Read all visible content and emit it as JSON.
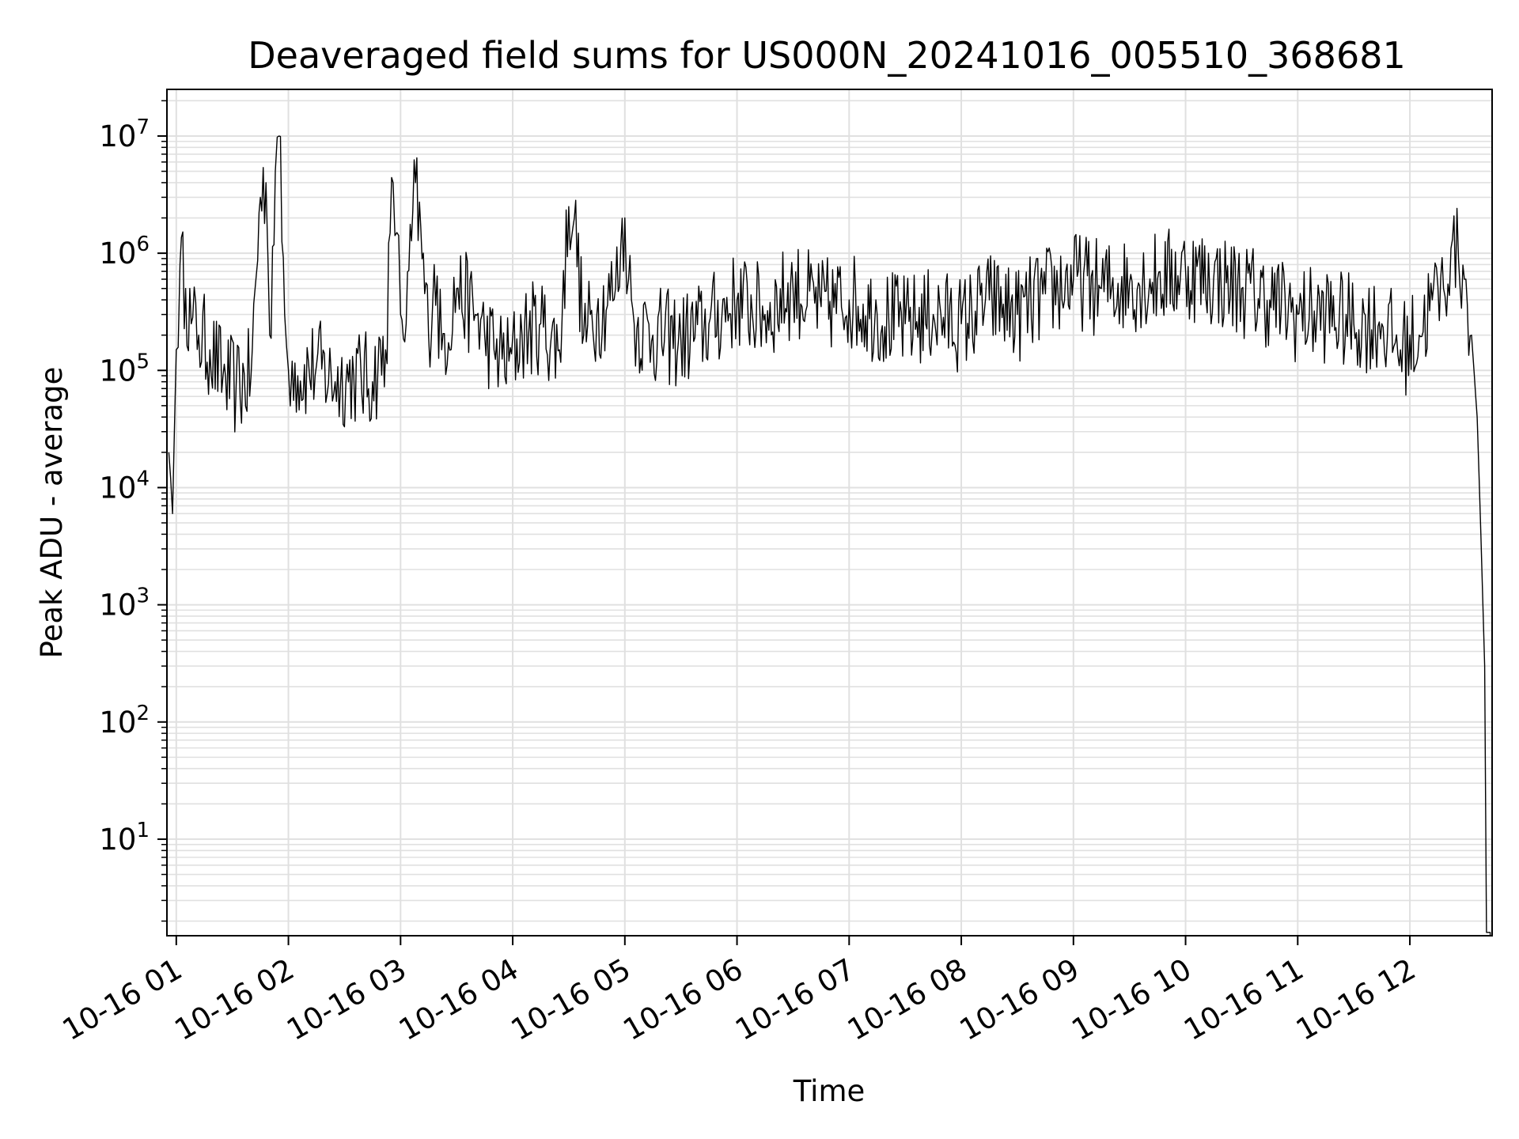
{
  "chart_data": {
    "type": "line",
    "title": "Deaveraged field sums for US000N_20241016_005510_368681",
    "xlabel": "Time",
    "ylabel": "Peak ADU - average",
    "yscale": "log",
    "grid": true,
    "grid_color": "#e0e0e0",
    "line_color": "#000000",
    "x_start": "10-16 00:55",
    "x_end": "10-16 12:44",
    "ylim": [
      1.5,
      25000000
    ],
    "x_ticks": [
      "10-16 01",
      "10-16 02",
      "10-16 03",
      "10-16 04",
      "10-16 05",
      "10-16 06",
      "10-16 07",
      "10-16 08",
      "10-16 09",
      "10-16 10",
      "10-16 11",
      "10-16 12"
    ],
    "y_ticks": [
      {
        "base": "10",
        "exp": "1",
        "value": 10
      },
      {
        "base": "10",
        "exp": "2",
        "value": 100
      },
      {
        "base": "10",
        "exp": "3",
        "value": 1000
      },
      {
        "base": "10",
        "exp": "4",
        "value": 10000
      },
      {
        "base": "10",
        "exp": "5",
        "value": 100000
      },
      {
        "base": "10",
        "exp": "6",
        "value": 1000000
      },
      {
        "base": "10",
        "exp": "7",
        "value": 10000000
      }
    ],
    "series": [
      {
        "x": [
          "10-16 00:56",
          "10-16 00:57",
          "10-16 00:58",
          "10-16 00:59",
          "10-16 01:00",
          "10-16 01:02",
          "10-16 01:05",
          "10-16 01:08",
          "10-16 01:12",
          "10-16 01:18",
          "10-16 01:25",
          "10-16 01:32",
          "10-16 01:40",
          "10-16 01:45",
          "10-16 01:48",
          "10-16 01:50",
          "10-16 01:53",
          "10-16 01:55",
          "10-16 01:58",
          "10-16 02:00",
          "10-16 02:02",
          "10-16 02:05",
          "10-16 02:15",
          "10-16 02:25",
          "10-16 02:35",
          "10-16 02:45",
          "10-16 02:52",
          "10-16 02:56",
          "10-16 02:58",
          "10-16 03:00",
          "10-16 03:03",
          "10-16 03:08",
          "10-16 03:15",
          "10-16 03:18",
          "10-16 03:22",
          "10-16 03:30",
          "10-16 03:40",
          "10-16 03:45",
          "10-16 03:50",
          "10-16 03:58",
          "10-16 04:05",
          "10-16 04:15",
          "10-16 04:25",
          "10-16 04:30",
          "10-16 04:33",
          "10-16 04:38",
          "10-16 04:45",
          "10-16 04:55",
          "10-16 05:00",
          "10-16 05:02",
          "10-16 05:05",
          "10-16 05:15",
          "10-16 05:30",
          "10-16 05:45",
          "10-16 06:00",
          "10-16 06:15",
          "10-16 06:30",
          "10-16 06:45",
          "10-16 07:00",
          "10-16 07:15",
          "10-16 07:30",
          "10-16 07:45",
          "10-16 08:00",
          "10-16 08:15",
          "10-16 08:30",
          "10-16 08:45",
          "10-16 09:00",
          "10-16 09:15",
          "10-16 09:30",
          "10-16 09:45",
          "10-16 10:00",
          "10-16 10:15",
          "10-16 10:30",
          "10-16 10:45",
          "10-16 11:00",
          "10-16 11:15",
          "10-16 11:30",
          "10-16 11:45",
          "10-16 11:55",
          "10-16 12:05",
          "10-16 12:12",
          "10-16 12:18",
          "10-16 12:22",
          "10-16 12:26",
          "10-16 12:30",
          "10-16 12:33",
          "10-16 12:36",
          "10-16 12:38",
          "10-16 12:40",
          "10-16 12:41",
          "10-16 12:42",
          "10-16 12:43"
        ],
        "y": [
          20000,
          12000,
          6000,
          30000,
          150000,
          800000,
          500000,
          250000,
          200000,
          150000,
          90000,
          70000,
          90000,
          3000000,
          4000000,
          200000,
          5000000,
          10000000,
          300000,
          100000,
          120000,
          90000,
          110000,
          80000,
          90000,
          80000,
          150000,
          4000000,
          1500000,
          300000,
          250000,
          4000000,
          200000,
          800000,
          150000,
          500000,
          300000,
          200000,
          150000,
          120000,
          200000,
          250000,
          150000,
          2500000,
          2000000,
          200000,
          300000,
          500000,
          2000000,
          600000,
          250000,
          200000,
          180000,
          250000,
          400000,
          300000,
          500000,
          350000,
          400000,
          300000,
          250000,
          300000,
          250000,
          400000,
          300000,
          450000,
          600000,
          500000,
          550000,
          600000,
          700000,
          600000,
          500000,
          400000,
          300000,
          300000,
          250000,
          250000,
          150000,
          200000,
          400000,
          500000,
          1100000,
          900000,
          600000,
          200000,
          40000,
          4000,
          300,
          1.6,
          1.6,
          1.6
        ]
      }
    ]
  }
}
